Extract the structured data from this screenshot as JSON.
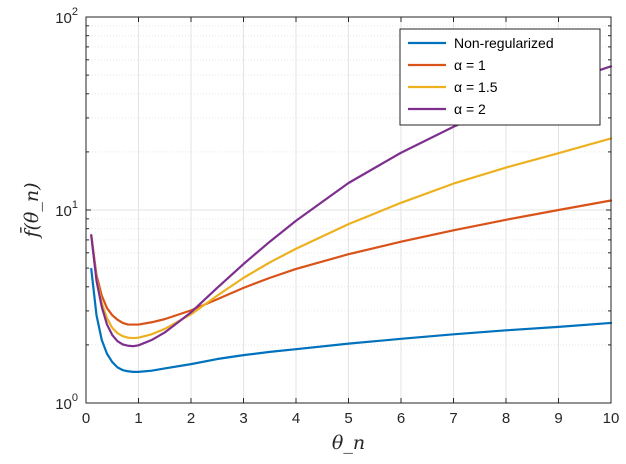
{
  "chart_data": {
    "type": "line",
    "xlabel": "θ_n",
    "ylabel": "f̄(θ_n)",
    "xlim": [
      0,
      10
    ],
    "ylim": [
      1,
      100
    ],
    "yscale": "log",
    "grid": true,
    "minor_grid": true,
    "legend_position": "top-right",
    "x_ticks": [
      0,
      1,
      2,
      3,
      4,
      5,
      6,
      7,
      8,
      9,
      10
    ],
    "x_tick_labels": [
      "0",
      "1",
      "2",
      "3",
      "4",
      "5",
      "6",
      "7",
      "8",
      "9",
      "10"
    ],
    "y_ticks": [
      1,
      10,
      100
    ],
    "y_tick_labels": [
      {
        "base": "10",
        "exp": "0"
      },
      {
        "base": "10",
        "exp": "1"
      },
      {
        "base": "10",
        "exp": "2"
      }
    ],
    "series": [
      {
        "name": "Non-regularized",
        "color": "#0072BD",
        "x": [
          0.1,
          0.2,
          0.3,
          0.4,
          0.5,
          0.6,
          0.7,
          0.8,
          0.9,
          1,
          1.25,
          1.5,
          2,
          2.5,
          3,
          3.5,
          4,
          5,
          6,
          7,
          8,
          9,
          10
        ],
        "y": [
          4.95,
          2.85,
          2.12,
          1.8,
          1.63,
          1.53,
          1.48,
          1.46,
          1.45,
          1.45,
          1.47,
          1.51,
          1.59,
          1.69,
          1.77,
          1.84,
          1.9,
          2.03,
          2.15,
          2.27,
          2.38,
          2.48,
          2.6
        ]
      },
      {
        "name": "α = 1",
        "color": "#D95319",
        "x": [
          0.1,
          0.2,
          0.3,
          0.4,
          0.5,
          0.6,
          0.7,
          0.8,
          0.9,
          1,
          1.25,
          1.5,
          2,
          2.5,
          3,
          3.5,
          4,
          5,
          6,
          7,
          8,
          9,
          10
        ],
        "y": [
          7.4,
          4.6,
          3.6,
          3.1,
          2.85,
          2.7,
          2.6,
          2.55,
          2.55,
          2.55,
          2.62,
          2.72,
          3.02,
          3.45,
          3.95,
          4.45,
          4.95,
          5.9,
          6.85,
          7.85,
          8.9,
          10.0,
          11.2
        ]
      },
      {
        "name": "α = 1.5",
        "color": "#EDB120",
        "x": [
          0.1,
          0.2,
          0.3,
          0.4,
          0.5,
          0.6,
          0.7,
          0.8,
          0.9,
          1,
          1.25,
          1.5,
          2,
          2.5,
          3,
          3.5,
          4,
          5,
          6,
          7,
          8,
          9,
          10
        ],
        "y": [
          7.4,
          4.4,
          3.3,
          2.75,
          2.45,
          2.3,
          2.22,
          2.18,
          2.17,
          2.18,
          2.27,
          2.42,
          2.88,
          3.6,
          4.45,
          5.35,
          6.3,
          8.45,
          10.9,
          13.7,
          16.6,
          19.7,
          23.5
        ]
      },
      {
        "name": "α = 2",
        "color": "#7E2F8E",
        "x": [
          0.1,
          0.2,
          0.3,
          0.4,
          0.5,
          0.6,
          0.7,
          0.8,
          0.9,
          1,
          1.25,
          1.5,
          2,
          2.5,
          3,
          3.5,
          4,
          5,
          6,
          7,
          8,
          9,
          10
        ],
        "y": [
          7.4,
          4.3,
          3.15,
          2.55,
          2.25,
          2.09,
          2.01,
          1.98,
          1.97,
          1.99,
          2.12,
          2.32,
          2.95,
          3.95,
          5.25,
          6.85,
          8.8,
          13.8,
          19.8,
          27.0,
          35.5,
          45.0,
          55.5
        ]
      }
    ]
  }
}
